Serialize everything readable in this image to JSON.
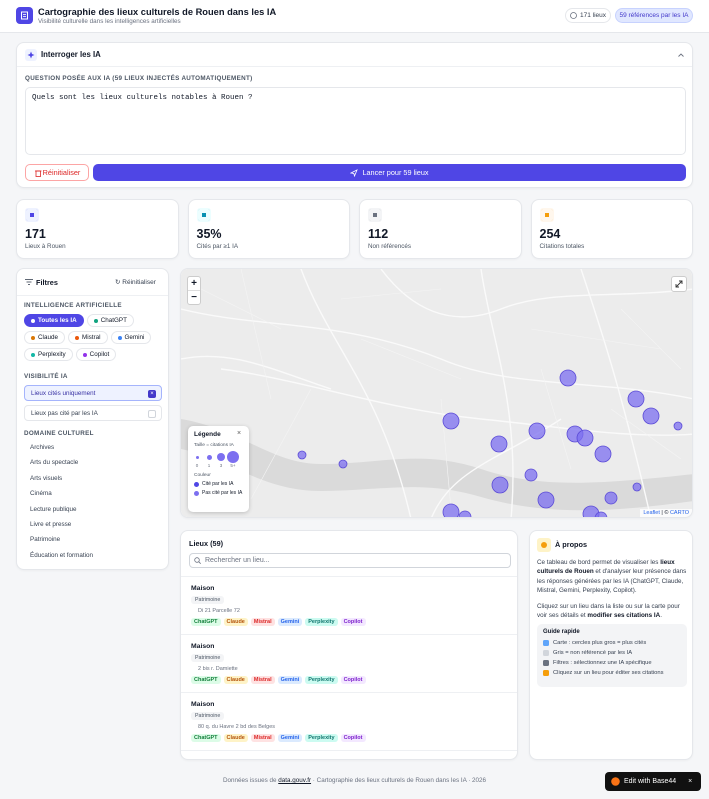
{
  "header": {
    "title": "Cartographie des lieux culturels de Rouen dans les IA",
    "subtitle": "Visibilité culturelle dans les intelligences artificielles",
    "badges": [
      "171 lieux",
      "59 références par les IA"
    ]
  },
  "query": {
    "title": "Interroger les IA",
    "label": "QUESTION POSÉE AUX IA (59 LIEUX INJECTÉS AUTOMATIQUEMENT)",
    "question": "Quels sont les lieux culturels notables à Rouen ?",
    "reset": "Réinitialiser",
    "launch": "Lancer pour 59 lieux"
  },
  "stats": [
    {
      "value": "171",
      "label": "Lieux à Rouen"
    },
    {
      "value": "35%",
      "label": "Cités par ≥1 IA"
    },
    {
      "value": "112",
      "label": "Non référencés"
    },
    {
      "value": "254",
      "label": "Citations totales"
    }
  ],
  "filters": {
    "title": "Filtres",
    "reset": "Réinitialiser",
    "ai_heading": "INTELLIGENCE ARTIFICIELLE",
    "ai_options": [
      "Toutes les IA",
      "ChatGPT",
      "Claude",
      "Mistral",
      "Gemini",
      "Perplexity",
      "Copilot"
    ],
    "visibility_heading": "VISIBILITÉ IA",
    "visibility_options": [
      "Lieux cités uniquement",
      "Lieux pas cité par les IA"
    ],
    "domain_heading": "DOMAINE CULTUREL",
    "domains": [
      "Archives",
      "Arts du spectacle",
      "Arts visuels",
      "Cinéma",
      "Lecture publique",
      "Livre et presse",
      "Patrimoine",
      "Éducation et formation"
    ]
  },
  "map": {
    "zoom_in": "+",
    "zoom_out": "−",
    "legend": {
      "title": "Légende",
      "size_label": "Taille = citations IA",
      "sizes": [
        "0",
        "1",
        "3",
        "5+"
      ],
      "color_label": "Couleur",
      "colors": [
        "Cité par les IA",
        "Pas cité par les IA"
      ]
    },
    "attribution": [
      "Leaflet",
      "| ©",
      "CARTO"
    ]
  },
  "places": {
    "title": "Lieux (59)",
    "search_placeholder": "Rechercher un lieu...",
    "items": [
      {
        "name": "Maison",
        "category": "Patrimoine",
        "address": "Di 21 Parcelle 72",
        "ais": [
          "ChatGPT",
          "Claude",
          "Mistral",
          "Gemini",
          "Perplexity",
          "Copilot"
        ]
      },
      {
        "name": "Maison",
        "category": "Patrimoine",
        "address": "2 bis r. Damiette",
        "ais": [
          "ChatGPT",
          "Claude",
          "Mistral",
          "Gemini",
          "Perplexity",
          "Copilot"
        ]
      },
      {
        "name": "Maison",
        "category": "Patrimoine",
        "address": "80 q. du Havre 2 bd des Belges",
        "ais": [
          "ChatGPT",
          "Claude",
          "Mistral",
          "Gemini",
          "Perplexity",
          "Copilot"
        ]
      }
    ]
  },
  "about": {
    "title": "À propos",
    "paragraphs": [
      [
        {
          "text": "Ce tableau de bord permet de visualiser les ",
          "bold": false
        },
        {
          "text": "lieux culturels de Rouen",
          "bold": true
        },
        {
          "text": " et d'analyser leur présence dans les réponses générées par les IA (ChatGPT, Claude, Mistral, Gemini, Perplexity, Copilot).",
          "bold": false
        }
      ],
      [
        {
          "text": "Cliquez sur un lieu dans la liste ou sur la carte pour voir ses détails et ",
          "bold": false
        },
        {
          "text": "modifier ses citations IA",
          "bold": true
        },
        {
          "text": ".",
          "bold": false
        }
      ]
    ],
    "guide_title": "Guide rapide",
    "guide": [
      "Carte : cercles plus gros = plus cités",
      "Gris = non référencé par les IA",
      "Filtres : sélectionnez une IA spécifique",
      "Cliquez sur un lieu pour éditer ses citations"
    ]
  },
  "footer": [
    "Données issues de ",
    "data.gouv.fr",
    " · Cartographie des lieux culturels de Rouen dans les IA · 2026"
  ],
  "badge": "Edit with Base44"
}
